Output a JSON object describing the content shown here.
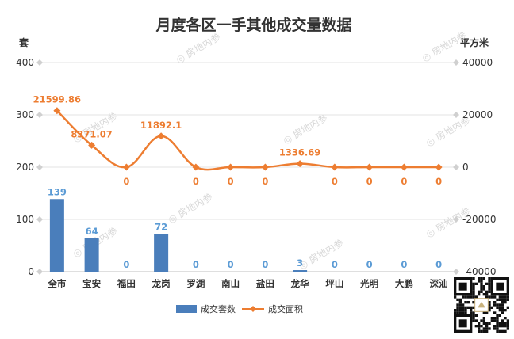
{
  "chart_data": {
    "type": "bar",
    "title": "月度各区一手其他成交量数据",
    "categories": [
      "全市",
      "宝安",
      "福田",
      "龙岗",
      "罗湖",
      "南山",
      "盐田",
      "龙华",
      "坪山",
      "光明",
      "大鹏",
      "深汕"
    ],
    "left_axis": {
      "unit": "套",
      "ylim": [
        0,
        400
      ],
      "ticks": [
        "0",
        "100",
        "200",
        "300",
        "400"
      ]
    },
    "right_axis": {
      "unit": "平方米",
      "ylim": [
        -40000,
        40000
      ],
      "ticks": [
        "-40000",
        "-20000",
        "0",
        "20000",
        "40000"
      ]
    },
    "series": [
      {
        "name": "成交套数",
        "type": "bar",
        "axis": "left",
        "color": "#4a7ebb",
        "values": [
          139,
          64,
          0,
          72,
          0,
          0,
          0,
          3,
          0,
          0,
          0,
          0
        ],
        "labels": [
          "139",
          "64",
          "0",
          "72",
          "0",
          "0",
          "0",
          "3",
          "0",
          "0",
          "0",
          "0"
        ]
      },
      {
        "name": "成交面积",
        "type": "line",
        "axis": "right",
        "color": "#ed7d31",
        "values": [
          21599.86,
          8371.07,
          0,
          11892.1,
          0,
          0,
          0,
          1336.69,
          0,
          0,
          0,
          0
        ],
        "labels": [
          "21599.86",
          "8371.07",
          "0",
          "11892.1",
          "0",
          "0",
          "0",
          "1336.69",
          "0",
          "0",
          "0",
          "0"
        ]
      }
    ],
    "grid": true,
    "legend": "bottom",
    "watermark": "房地内参"
  }
}
